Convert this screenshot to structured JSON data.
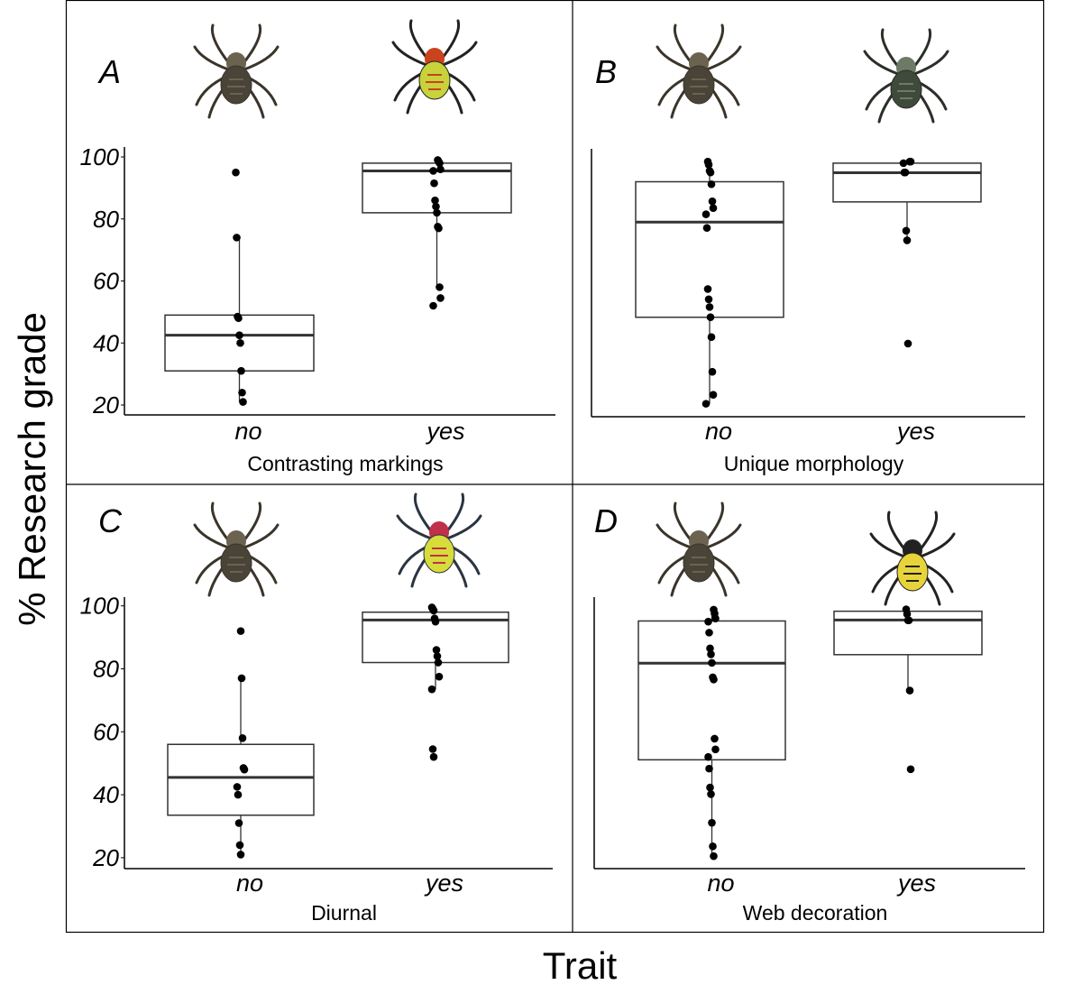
{
  "figure": {
    "ylabel": "% Research grade",
    "xlabel": "Trait"
  },
  "colors": {
    "box_stroke": "#333333",
    "points": "#000000",
    "frame": "#000000"
  },
  "chart_data": [
    {
      "type": "boxplot",
      "panel": "A",
      "xlabel": "Contrasting markings",
      "categories": [
        "no",
        "yes"
      ],
      "ylim": [
        18,
        102
      ],
      "yticks": [
        "100",
        "80",
        "60",
        "40",
        "20"
      ],
      "show_y_ticks": true,
      "images": [
        "orb-weaver-spider",
        "contrasting-marked-spider"
      ],
      "groups": [
        {
          "category": "no",
          "q1": 31,
          "median": 42.5,
          "q3": 49,
          "whisker_low": 21,
          "whisker_high": 74,
          "points": [
            95,
            74,
            48.5,
            48,
            42.5,
            40,
            31,
            24,
            21
          ]
        },
        {
          "category": "yes",
          "q1": 82,
          "median": 95.5,
          "q3": 98,
          "whisker_low": 58,
          "whisker_high": 99,
          "points": [
            99,
            98.5,
            98,
            96,
            95.5,
            91.5,
            86,
            84,
            82,
            77.5,
            77,
            58,
            54.5,
            52
          ]
        }
      ]
    },
    {
      "type": "boxplot",
      "panel": "B",
      "xlabel": "Unique morphology",
      "categories": [
        "no",
        "yes"
      ],
      "ylim": [
        18,
        102
      ],
      "yticks": [],
      "show_y_ticks": false,
      "images": [
        "orb-weaver-spider",
        "unique-morphology-spider"
      ],
      "groups": [
        {
          "category": "no",
          "q1": 48.3,
          "median": 79,
          "q3": 92,
          "whisker_low": 20.4,
          "whisker_high": 98.5,
          "points": [
            98.5,
            97.5,
            95.5,
            95,
            91.2,
            85.7,
            83.5,
            81.5,
            77.1,
            57.4,
            54.1,
            51.6,
            48.3,
            41.9,
            30.7,
            23.3,
            20.4
          ]
        },
        {
          "category": "yes",
          "q1": 85.5,
          "median": 94.9,
          "q3": 98,
          "whisker_low": 73.1,
          "whisker_high": 98.5,
          "points": [
            98.5,
            98.5,
            98,
            95,
            95,
            76.2,
            73.1,
            39.8
          ]
        }
      ]
    },
    {
      "type": "boxplot",
      "panel": "C",
      "xlabel": "Diurnal",
      "categories": [
        "no",
        "yes"
      ],
      "ylim": [
        18,
        102
      ],
      "yticks": [
        "100",
        "80",
        "60",
        "40",
        "20"
      ],
      "show_y_ticks": true,
      "images": [
        "orb-weaver-spider",
        "diurnal-spider"
      ],
      "groups": [
        {
          "category": "no",
          "q1": 33.5,
          "median": 45.5,
          "q3": 56,
          "whisker_low": 21,
          "whisker_high": 77,
          "points": [
            92,
            77,
            58,
            48.5,
            48,
            42.5,
            40,
            31,
            24,
            21
          ]
        },
        {
          "category": "yes",
          "q1": 82,
          "median": 95.5,
          "q3": 98,
          "whisker_low": 73.5,
          "whisker_high": 99.5,
          "points": [
            99.5,
            99,
            98.5,
            96,
            95,
            86,
            84,
            82,
            77.5,
            73.5,
            54.5,
            52
          ]
        }
      ]
    },
    {
      "type": "boxplot",
      "panel": "D",
      "xlabel": "Web decoration",
      "categories": [
        "no",
        "yes"
      ],
      "ylim": [
        18,
        102
      ],
      "yticks": [],
      "show_y_ticks": false,
      "images": [
        "orb-weaver-spider",
        "argiope-spider"
      ],
      "groups": [
        {
          "category": "no",
          "q1": 51.1,
          "median": 81.8,
          "q3": 95.2,
          "whisker_low": 20.5,
          "whisker_high": 98.8,
          "points": [
            98.8,
            97.6,
            96,
            95,
            91.5,
            86.5,
            84.6,
            81.9,
            77.3,
            76.6,
            57.8,
            54.4,
            52,
            48.3,
            42.3,
            40.2,
            31.1,
            23.6,
            20.5
          ]
        },
        {
          "category": "yes",
          "q1": 84.5,
          "median": 95.5,
          "q3": 98.3,
          "whisker_low": 73.1,
          "whisker_high": 98.9,
          "points": [
            98.9,
            97.4,
            95.4,
            95.4,
            73.1,
            48.1
          ]
        }
      ]
    }
  ]
}
